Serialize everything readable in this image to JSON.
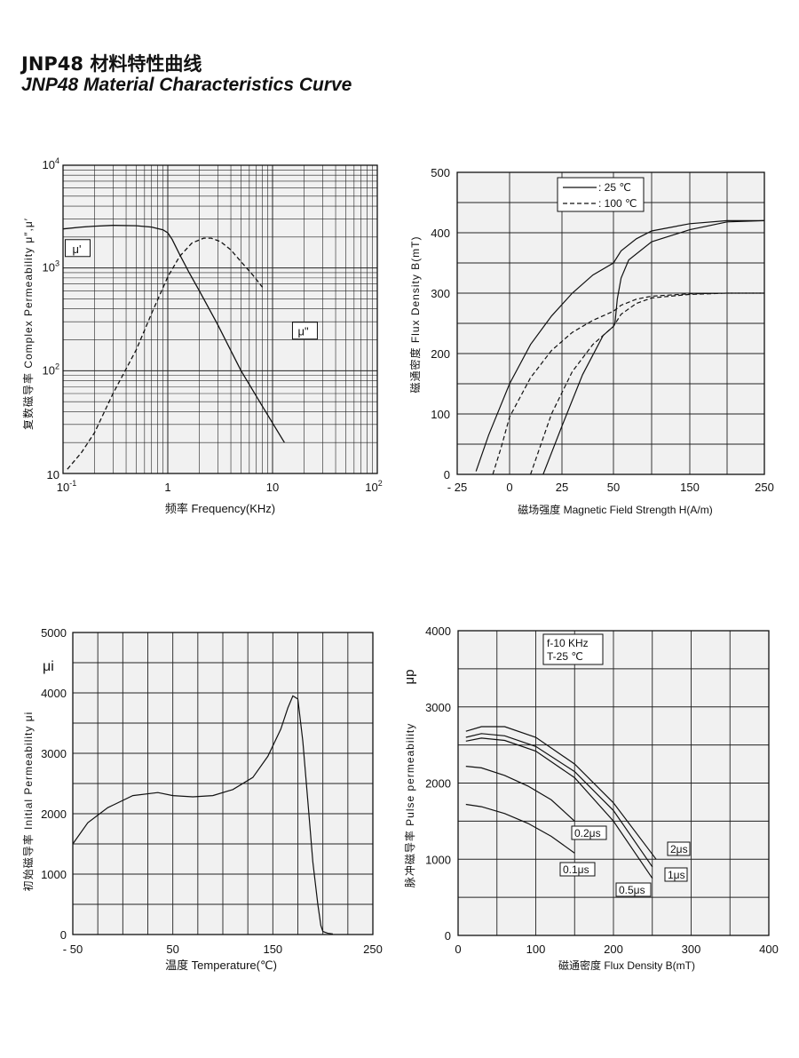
{
  "title_cn": "JNP48  材料特性曲线",
  "title_en": "JNP48    Material Characteristics Curve",
  "chart_data": [
    {
      "type": "line",
      "id": "permeability-frequency",
      "xscale": "log",
      "yscale": "log",
      "xlim": [
        0.1,
        100
      ],
      "ylim": [
        10,
        10000
      ],
      "grid": true,
      "xlabel": "频率  Frequency(KHz)",
      "ylabel": "复数磁导率  Complex Permeability μ″,μ′",
      "x_ticks": [
        "10",
        "1",
        "10",
        "10"
      ],
      "x_tick_sup": [
        "-1",
        "",
        "",
        "2"
      ],
      "y_ticks": [
        "10",
        "10",
        "10",
        "10"
      ],
      "y_tick_sup": [
        "4",
        "3",
        "2",
        ""
      ],
      "series": [
        {
          "name": "μ'",
          "style": "solid",
          "x": [
            0.1,
            0.15,
            0.2,
            0.3,
            0.5,
            0.7,
            0.9,
            1.0,
            1.1,
            1.3,
            1.6,
            2,
            3,
            5,
            8,
            13
          ],
          "y": [
            2400,
            2500,
            2550,
            2600,
            2580,
            2500,
            2350,
            2200,
            1900,
            1350,
            900,
            600,
            280,
            100,
            45,
            20
          ]
        },
        {
          "name": "μ\"",
          "style": "dashed",
          "x": [
            0.11,
            0.15,
            0.2,
            0.3,
            0.5,
            0.7,
            1.0,
            1.3,
            1.7,
            2.2,
            2.6,
            3.2,
            4,
            5,
            6.5,
            8
          ],
          "y": [
            11,
            16,
            25,
            60,
            160,
            360,
            820,
            1300,
            1750,
            1950,
            1950,
            1800,
            1500,
            1150,
            850,
            650
          ]
        }
      ]
    },
    {
      "type": "line",
      "id": "bh-curve",
      "xlim": [
        -25,
        250
      ],
      "ylim": [
        0,
        500
      ],
      "grid": true,
      "xlabel": "磁场强度  Magnetic Field Strength H(A/m)",
      "ylabel": "磁通密度  Flux Density B(mT)",
      "x_ticks": [
        "- 25",
        "0",
        "25",
        "50",
        "150",
        "250"
      ],
      "y_ticks": [
        "0",
        "100",
        "200",
        "300",
        "400",
        "500"
      ],
      "legend": {
        "placement": "top-center",
        "entries": [
          ": 25 ℃",
          ": 100 ℃"
        ]
      },
      "series": [
        {
          "name": ": 25 ℃",
          "style": "solid",
          "x": [
            -16,
            -10,
            0,
            10,
            20,
            30,
            40,
            50,
            60,
            80,
            100,
            150,
            200,
            250
          ],
          "y": [
            5,
            65,
            150,
            215,
            262,
            300,
            330,
            350,
            370,
            390,
            403,
            415,
            420,
            420
          ]
        },
        {
          "name": ": 25 ℃",
          "style": "solid",
          "x": [
            16,
            25,
            35,
            45,
            50,
            52,
            55,
            60,
            70,
            100,
            150,
            200,
            250
          ],
          "y": [
            0,
            80,
            165,
            230,
            245,
            250,
            290,
            325,
            355,
            385,
            405,
            418,
            420
          ]
        },
        {
          "name": ": 100 ℃",
          "style": "dashed",
          "x": [
            -8,
            -4,
            0,
            10,
            20,
            30,
            40,
            50,
            60,
            80,
            100,
            150,
            200,
            250
          ],
          "y": [
            0,
            45,
            95,
            160,
            205,
            235,
            255,
            270,
            280,
            290,
            295,
            299,
            300,
            300
          ]
        },
        {
          "name": ": 100 ℃",
          "style": "dashed",
          "x": [
            10,
            20,
            30,
            40,
            50,
            60,
            80,
            100,
            150,
            200,
            250
          ],
          "y": [
            0,
            100,
            170,
            215,
            245,
            265,
            283,
            292,
            298,
            300,
            300
          ]
        }
      ]
    },
    {
      "type": "line",
      "id": "permeability-temperature",
      "xlim": [
        -50,
        250
      ],
      "ylim": [
        0,
        5000
      ],
      "grid": true,
      "xlabel": "温度  Temperature(℃)",
      "ylabel": "初始磁导率  Initial Permeability μi",
      "series_label": "μi",
      "x_ticks": [
        "- 50",
        "50",
        "150",
        "250"
      ],
      "y_ticks": [
        "0",
        "1000",
        "2000",
        "3000",
        "4000",
        "5000"
      ],
      "series": [
        {
          "name": "",
          "style": "solid",
          "x": [
            -50,
            -35,
            -15,
            10,
            35,
            50,
            70,
            90,
            110,
            130,
            145,
            158,
            165,
            170,
            175,
            180,
            185,
            190,
            195,
            198,
            200,
            205,
            210
          ],
          "y": [
            1500,
            1850,
            2100,
            2300,
            2350,
            2300,
            2280,
            2300,
            2400,
            2600,
            2950,
            3400,
            3750,
            3950,
            3900,
            3200,
            2200,
            1200,
            500,
            150,
            50,
            20,
            10
          ]
        }
      ]
    },
    {
      "type": "line",
      "id": "pulse-permeability",
      "xlim": [
        0,
        400
      ],
      "ylim": [
        0,
        4000
      ],
      "grid": true,
      "xlabel": "磁通密度  Flux Density B(mT)",
      "ylabel": "脉冲磁导率  Pulse permeability",
      "series_label": "μp",
      "conditions": [
        "f-10 KHz",
        "T-25 ℃"
      ],
      "x_ticks": [
        "0",
        "100",
        "200",
        "300",
        "400"
      ],
      "y_ticks": [
        "0",
        "1000",
        "2000",
        "3000",
        "4000"
      ],
      "series": [
        {
          "name": "0.1μs",
          "style": "solid",
          "x": [
            10,
            30,
            60,
            90,
            120,
            150
          ],
          "y": [
            1720,
            1690,
            1600,
            1470,
            1300,
            1080
          ]
        },
        {
          "name": "0.2μs",
          "style": "solid",
          "x": [
            10,
            30,
            60,
            90,
            120,
            150
          ],
          "y": [
            2220,
            2200,
            2100,
            1960,
            1780,
            1500
          ]
        },
        {
          "name": "0.5μs",
          "style": "solid",
          "x": [
            10,
            30,
            60,
            100,
            150,
            200,
            250
          ],
          "y": [
            2550,
            2590,
            2560,
            2420,
            2070,
            1500,
            750
          ]
        },
        {
          "name": "1μs",
          "style": "solid",
          "x": [
            10,
            30,
            60,
            100,
            150,
            200,
            250
          ],
          "y": [
            2600,
            2650,
            2620,
            2480,
            2150,
            1640,
            900
          ]
        },
        {
          "name": "2μs",
          "style": "solid",
          "x": [
            10,
            30,
            60,
            100,
            150,
            200,
            255
          ],
          "y": [
            2680,
            2740,
            2740,
            2600,
            2250,
            1740,
            1000
          ]
        }
      ]
    }
  ]
}
